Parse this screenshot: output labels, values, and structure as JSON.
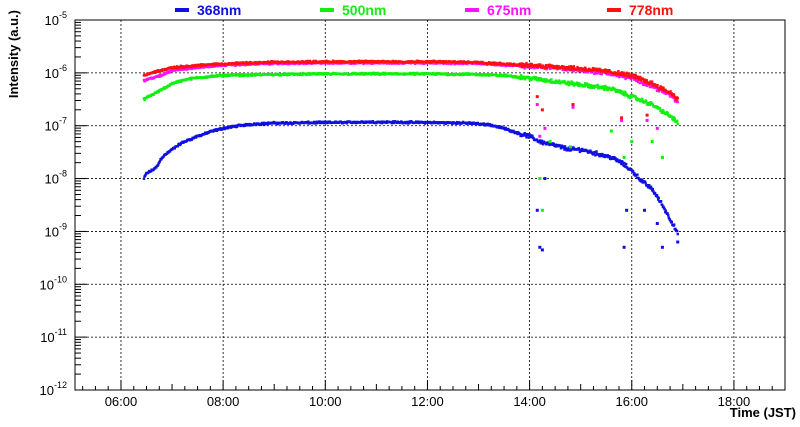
{
  "chart_data": {
    "type": "scatter",
    "title": "",
    "xlabel": "Time (JST)",
    "ylabel": "Intensity (a.u.)",
    "yscale": "log",
    "xlim": [
      5.1,
      19.0
    ],
    "ylim_exponent": [
      -12,
      -5
    ],
    "x_ticks": [
      {
        "value": 6,
        "label": "06:00"
      },
      {
        "value": 8,
        "label": "08:00"
      },
      {
        "value": 10,
        "label": "10:00"
      },
      {
        "value": 12,
        "label": "12:00"
      },
      {
        "value": 14,
        "label": "14:00"
      },
      {
        "value": 16,
        "label": "16:00"
      },
      {
        "value": 18,
        "label": "18:00"
      }
    ],
    "y_ticks": [
      {
        "exp": -5,
        "base": "10",
        "power": "-5"
      },
      {
        "exp": -6,
        "base": "10",
        "power": "-6"
      },
      {
        "exp": -7,
        "base": "10",
        "power": "-7"
      },
      {
        "exp": -8,
        "base": "10",
        "power": "-8"
      },
      {
        "exp": -9,
        "base": "10",
        "power": "-9"
      },
      {
        "exp": -10,
        "base": "10",
        "power": "-10"
      },
      {
        "exp": -11,
        "base": "10",
        "power": "-11"
      },
      {
        "exp": -12,
        "base": "10",
        "power": "-12"
      }
    ],
    "grid": true,
    "legend_position": "top",
    "series": [
      {
        "name": "368nm",
        "color": "#1010e0",
        "points": [
          [
            6.45,
            -8.0
          ],
          [
            6.5,
            -7.9
          ],
          [
            6.6,
            -7.85
          ],
          [
            6.7,
            -7.78
          ],
          [
            6.8,
            -7.6
          ],
          [
            7.0,
            -7.45
          ],
          [
            7.2,
            -7.32
          ],
          [
            7.5,
            -7.2
          ],
          [
            7.8,
            -7.1
          ],
          [
            8.0,
            -7.05
          ],
          [
            8.3,
            -7.0
          ],
          [
            8.6,
            -6.97
          ],
          [
            9.0,
            -6.95
          ],
          [
            10.0,
            -6.94
          ],
          [
            11.0,
            -6.93
          ],
          [
            12.0,
            -6.94
          ],
          [
            12.8,
            -6.95
          ],
          [
            13.2,
            -6.98
          ],
          [
            13.5,
            -7.05
          ],
          [
            13.8,
            -7.15
          ],
          [
            14.0,
            -7.2
          ],
          [
            14.2,
            -7.3
          ],
          [
            14.4,
            -7.35
          ],
          [
            14.6,
            -7.4
          ],
          [
            14.8,
            -7.45
          ],
          [
            15.0,
            -7.45
          ],
          [
            15.2,
            -7.5
          ],
          [
            15.4,
            -7.55
          ],
          [
            15.6,
            -7.6
          ],
          [
            15.8,
            -7.7
          ],
          [
            16.0,
            -7.85
          ],
          [
            16.2,
            -8.05
          ],
          [
            16.4,
            -8.2
          ],
          [
            16.6,
            -8.5
          ],
          [
            16.8,
            -8.85
          ],
          [
            16.9,
            -9.05
          ]
        ]
      },
      {
        "name": "500nm",
        "color": "#10f010",
        "points": [
          [
            6.45,
            -6.5
          ],
          [
            6.6,
            -6.42
          ],
          [
            6.8,
            -6.32
          ],
          [
            7.0,
            -6.2
          ],
          [
            7.3,
            -6.12
          ],
          [
            7.6,
            -6.08
          ],
          [
            8.0,
            -6.05
          ],
          [
            9.0,
            -6.03
          ],
          [
            10.0,
            -6.02
          ],
          [
            11.0,
            -6.02
          ],
          [
            12.0,
            -6.02
          ],
          [
            13.0,
            -6.03
          ],
          [
            13.5,
            -6.05
          ],
          [
            14.0,
            -6.1
          ],
          [
            14.4,
            -6.15
          ],
          [
            14.8,
            -6.2
          ],
          [
            15.2,
            -6.25
          ],
          [
            15.6,
            -6.3
          ],
          [
            16.0,
            -6.45
          ],
          [
            16.4,
            -6.6
          ],
          [
            16.8,
            -6.85
          ],
          [
            16.9,
            -6.95
          ]
        ]
      },
      {
        "name": "675nm",
        "color": "#ff10ff",
        "points": [
          [
            6.45,
            -6.15
          ],
          [
            6.6,
            -6.1
          ],
          [
            6.8,
            -6.05
          ],
          [
            7.0,
            -5.95
          ],
          [
            7.5,
            -5.9
          ],
          [
            8.0,
            -5.85
          ],
          [
            9.0,
            -5.82
          ],
          [
            10.0,
            -5.81
          ],
          [
            11.0,
            -5.81
          ],
          [
            12.0,
            -5.81
          ],
          [
            13.0,
            -5.82
          ],
          [
            13.5,
            -5.85
          ],
          [
            14.0,
            -5.88
          ],
          [
            14.5,
            -5.9
          ],
          [
            15.0,
            -5.95
          ],
          [
            15.5,
            -6.0
          ],
          [
            16.0,
            -6.1
          ],
          [
            16.4,
            -6.25
          ],
          [
            16.8,
            -6.45
          ],
          [
            16.9,
            -6.55
          ]
        ]
      },
      {
        "name": "778nm",
        "color": "#ff1010",
        "points": [
          [
            6.45,
            -6.05
          ],
          [
            6.6,
            -6.0
          ],
          [
            6.8,
            -5.95
          ],
          [
            7.0,
            -5.9
          ],
          [
            7.5,
            -5.86
          ],
          [
            8.0,
            -5.83
          ],
          [
            9.0,
            -5.8
          ],
          [
            10.0,
            -5.79
          ],
          [
            11.0,
            -5.79
          ],
          [
            12.0,
            -5.79
          ],
          [
            13.0,
            -5.8
          ],
          [
            13.5,
            -5.83
          ],
          [
            14.0,
            -5.86
          ],
          [
            14.5,
            -5.88
          ],
          [
            15.0,
            -5.92
          ],
          [
            15.5,
            -5.97
          ],
          [
            16.0,
            -6.05
          ],
          [
            16.4,
            -6.2
          ],
          [
            16.8,
            -6.4
          ],
          [
            16.9,
            -6.5
          ]
        ]
      }
    ],
    "outliers": [
      {
        "series": "368nm",
        "points": [
          [
            14.15,
            -8.6
          ],
          [
            14.2,
            -9.3
          ],
          [
            14.25,
            -9.35
          ],
          [
            14.3,
            -8.0
          ],
          [
            15.85,
            -9.3
          ],
          [
            15.9,
            -8.6
          ],
          [
            16.25,
            -8.6
          ],
          [
            16.5,
            -8.85
          ],
          [
            16.6,
            -9.3
          ],
          [
            16.9,
            -9.2
          ]
        ]
      },
      {
        "series": "500nm",
        "points": [
          [
            14.2,
            -8.0
          ],
          [
            14.25,
            -8.6
          ],
          [
            14.4,
            -7.3
          ],
          [
            14.8,
            -7.4
          ],
          [
            15.6,
            -7.1
          ],
          [
            15.85,
            -7.6
          ],
          [
            16.0,
            -7.3
          ],
          [
            16.4,
            -7.3
          ],
          [
            16.6,
            -7.6
          ]
        ]
      },
      {
        "series": "675nm",
        "points": [
          [
            14.15,
            -6.6
          ],
          [
            14.2,
            -7.2
          ],
          [
            14.3,
            -7.05
          ],
          [
            14.85,
            -6.65
          ],
          [
            15.8,
            -6.9
          ],
          [
            16.3,
            -6.9
          ],
          [
            16.5,
            -7.05
          ]
        ]
      },
      {
        "series": "778nm",
        "points": [
          [
            14.15,
            -6.45
          ],
          [
            14.25,
            -6.7
          ],
          [
            14.85,
            -6.6
          ],
          [
            15.8,
            -6.85
          ],
          [
            16.3,
            -6.8
          ]
        ]
      }
    ]
  }
}
